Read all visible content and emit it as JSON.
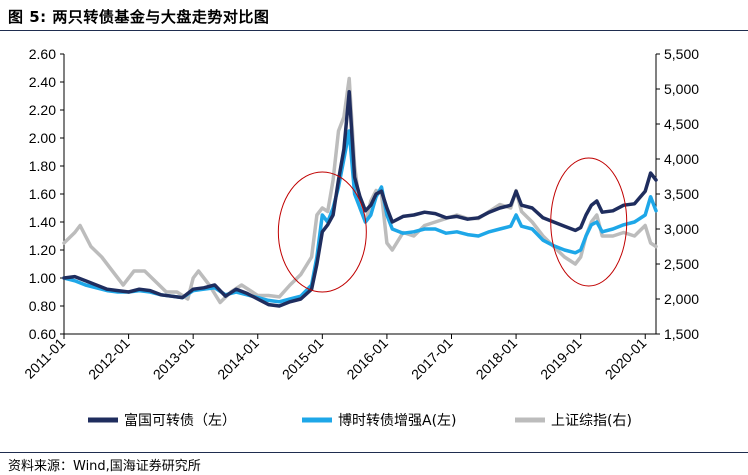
{
  "figure": {
    "title": "图 5:  两只转债基金与大盘走势对比图",
    "source": "资料来源：Wind,国海证券研究所"
  },
  "chart_data": {
    "type": "line",
    "title": "两只转债基金与大盘走势对比图",
    "x_ticks": [
      "2011-01",
      "2012-01",
      "2013-01",
      "2014-01",
      "2015-01",
      "2016-01",
      "2017-01",
      "2018-01",
      "2019-01",
      "2020-01"
    ],
    "x_range": [
      "2011-01",
      "2020-03"
    ],
    "ylim_left": [
      0.6,
      2.6
    ],
    "yticks_left": [
      "0.60",
      "0.80",
      "1.00",
      "1.20",
      "1.40",
      "1.60",
      "1.80",
      "2.00",
      "2.20",
      "2.40",
      "2.60"
    ],
    "ylim_right": [
      1500,
      5500
    ],
    "yticks_right": [
      "1,500",
      "2,000",
      "2,500",
      "3,000",
      "3,500",
      "4,000",
      "4,500",
      "5,000",
      "5,500"
    ],
    "grid": false,
    "legend_position": "bottom",
    "annotations": [
      {
        "type": "ellipse",
        "color": "#c00000",
        "around": "2014-10 to 2015-04"
      },
      {
        "type": "ellipse",
        "color": "#c00000",
        "around": "2018-12 to 2019-05"
      }
    ],
    "series": [
      {
        "name": "富国可转债（左）",
        "axis": "left",
        "color": "#1f2d5e",
        "points": [
          [
            "2011-01",
            1.0
          ],
          [
            "2011-03",
            1.01
          ],
          [
            "2011-05",
            0.98
          ],
          [
            "2011-07",
            0.95
          ],
          [
            "2011-09",
            0.92
          ],
          [
            "2011-11",
            0.91
          ],
          [
            "2012-01",
            0.9
          ],
          [
            "2012-03",
            0.92
          ],
          [
            "2012-05",
            0.91
          ],
          [
            "2012-07",
            0.88
          ],
          [
            "2012-09",
            0.87
          ],
          [
            "2012-11",
            0.86
          ],
          [
            "2013-01",
            0.92
          ],
          [
            "2013-03",
            0.93
          ],
          [
            "2013-05",
            0.95
          ],
          [
            "2013-07",
            0.87
          ],
          [
            "2013-09",
            0.92
          ],
          [
            "2013-11",
            0.89
          ],
          [
            "2014-01",
            0.85
          ],
          [
            "2014-03",
            0.81
          ],
          [
            "2014-05",
            0.8
          ],
          [
            "2014-07",
            0.83
          ],
          [
            "2014-09",
            0.85
          ],
          [
            "2014-11",
            0.92
          ],
          [
            "2014-12",
            1.1
          ],
          [
            "2015-01",
            1.33
          ],
          [
            "2015-02",
            1.38
          ],
          [
            "2015-03",
            1.45
          ],
          [
            "2015-04",
            1.7
          ],
          [
            "2015-05",
            1.92
          ],
          [
            "2015-06",
            2.33
          ],
          [
            "2015-07",
            1.72
          ],
          [
            "2015-08",
            1.58
          ],
          [
            "2015-09",
            1.48
          ],
          [
            "2015-10",
            1.52
          ],
          [
            "2015-11",
            1.6
          ],
          [
            "2015-12",
            1.62
          ],
          [
            "2016-01",
            1.5
          ],
          [
            "2016-02",
            1.4
          ],
          [
            "2016-04",
            1.44
          ],
          [
            "2016-06",
            1.45
          ],
          [
            "2016-08",
            1.47
          ],
          [
            "2016-10",
            1.46
          ],
          [
            "2016-12",
            1.43
          ],
          [
            "2017-02",
            1.44
          ],
          [
            "2017-04",
            1.42
          ],
          [
            "2017-06",
            1.43
          ],
          [
            "2017-08",
            1.47
          ],
          [
            "2017-10",
            1.5
          ],
          [
            "2017-12",
            1.52
          ],
          [
            "2018-01",
            1.62
          ],
          [
            "2018-02",
            1.52
          ],
          [
            "2018-04",
            1.5
          ],
          [
            "2018-06",
            1.43
          ],
          [
            "2018-08",
            1.4
          ],
          [
            "2018-10",
            1.37
          ],
          [
            "2018-12",
            1.34
          ],
          [
            "2019-01",
            1.36
          ],
          [
            "2019-02",
            1.45
          ],
          [
            "2019-03",
            1.52
          ],
          [
            "2019-04",
            1.55
          ],
          [
            "2019-05",
            1.47
          ],
          [
            "2019-07",
            1.48
          ],
          [
            "2019-09",
            1.52
          ],
          [
            "2019-11",
            1.53
          ],
          [
            "2020-01",
            1.62
          ],
          [
            "2020-02",
            1.75
          ],
          [
            "2020-03",
            1.7
          ]
        ]
      },
      {
        "name": "博时转债增强A(左)",
        "axis": "left",
        "color": "#1ea7e8",
        "points": [
          [
            "2011-01",
            1.0
          ],
          [
            "2011-03",
            0.98
          ],
          [
            "2011-05",
            0.95
          ],
          [
            "2011-07",
            0.93
          ],
          [
            "2011-09",
            0.91
          ],
          [
            "2011-11",
            0.9
          ],
          [
            "2012-01",
            0.9
          ],
          [
            "2012-03",
            0.91
          ],
          [
            "2012-05",
            0.9
          ],
          [
            "2012-07",
            0.88
          ],
          [
            "2012-09",
            0.87
          ],
          [
            "2012-11",
            0.86
          ],
          [
            "2013-01",
            0.91
          ],
          [
            "2013-03",
            0.92
          ],
          [
            "2013-05",
            0.93
          ],
          [
            "2013-07",
            0.88
          ],
          [
            "2013-09",
            0.9
          ],
          [
            "2013-11",
            0.88
          ],
          [
            "2014-01",
            0.86
          ],
          [
            "2014-03",
            0.84
          ],
          [
            "2014-05",
            0.83
          ],
          [
            "2014-07",
            0.85
          ],
          [
            "2014-09",
            0.87
          ],
          [
            "2014-11",
            0.95
          ],
          [
            "2014-12",
            1.15
          ],
          [
            "2015-01",
            1.45
          ],
          [
            "2015-02",
            1.4
          ],
          [
            "2015-03",
            1.5
          ],
          [
            "2015-04",
            1.65
          ],
          [
            "2015-05",
            1.85
          ],
          [
            "2015-06",
            2.05
          ],
          [
            "2015-07",
            1.6
          ],
          [
            "2015-08",
            1.5
          ],
          [
            "2015-09",
            1.4
          ],
          [
            "2015-10",
            1.45
          ],
          [
            "2015-11",
            1.58
          ],
          [
            "2015-12",
            1.65
          ],
          [
            "2016-01",
            1.45
          ],
          [
            "2016-02",
            1.35
          ],
          [
            "2016-04",
            1.32
          ],
          [
            "2016-06",
            1.33
          ],
          [
            "2016-08",
            1.35
          ],
          [
            "2016-10",
            1.35
          ],
          [
            "2016-12",
            1.32
          ],
          [
            "2017-02",
            1.33
          ],
          [
            "2017-04",
            1.31
          ],
          [
            "2017-06",
            1.3
          ],
          [
            "2017-08",
            1.33
          ],
          [
            "2017-10",
            1.35
          ],
          [
            "2017-12",
            1.37
          ],
          [
            "2018-01",
            1.45
          ],
          [
            "2018-02",
            1.37
          ],
          [
            "2018-04",
            1.35
          ],
          [
            "2018-06",
            1.27
          ],
          [
            "2018-08",
            1.23
          ],
          [
            "2018-10",
            1.2
          ],
          [
            "2018-12",
            1.18
          ],
          [
            "2019-01",
            1.2
          ],
          [
            "2019-02",
            1.3
          ],
          [
            "2019-03",
            1.38
          ],
          [
            "2019-04",
            1.4
          ],
          [
            "2019-05",
            1.33
          ],
          [
            "2019-07",
            1.35
          ],
          [
            "2019-09",
            1.38
          ],
          [
            "2019-11",
            1.4
          ],
          [
            "2020-01",
            1.45
          ],
          [
            "2020-02",
            1.58
          ],
          [
            "2020-03",
            1.48
          ]
        ]
      },
      {
        "name": "上证综指(右)",
        "axis": "right",
        "color": "#bcbcbc",
        "points": [
          [
            "2011-01",
            2800
          ],
          [
            "2011-03",
            2950
          ],
          [
            "2011-04",
            3050
          ],
          [
            "2011-06",
            2750
          ],
          [
            "2011-08",
            2600
          ],
          [
            "2011-10",
            2400
          ],
          [
            "2011-12",
            2200
          ],
          [
            "2012-02",
            2400
          ],
          [
            "2012-04",
            2400
          ],
          [
            "2012-06",
            2250
          ],
          [
            "2012-08",
            2100
          ],
          [
            "2012-10",
            2100
          ],
          [
            "2012-12",
            2000
          ],
          [
            "2013-01",
            2300
          ],
          [
            "2013-02",
            2400
          ],
          [
            "2013-04",
            2200
          ],
          [
            "2013-06",
            1950
          ],
          [
            "2013-08",
            2100
          ],
          [
            "2013-10",
            2200
          ],
          [
            "2013-12",
            2100
          ],
          [
            "2014-01",
            2050
          ],
          [
            "2014-03",
            2050
          ],
          [
            "2014-05",
            2030
          ],
          [
            "2014-07",
            2200
          ],
          [
            "2014-09",
            2350
          ],
          [
            "2014-11",
            2600
          ],
          [
            "2014-12",
            3200
          ],
          [
            "2015-01",
            3300
          ],
          [
            "2015-02",
            3250
          ],
          [
            "2015-03",
            3700
          ],
          [
            "2015-04",
            4400
          ],
          [
            "2015-05",
            4600
          ],
          [
            "2015-06",
            5150
          ],
          [
            "2015-07",
            3900
          ],
          [
            "2015-08",
            3300
          ],
          [
            "2015-09",
            3100
          ],
          [
            "2015-10",
            3400
          ],
          [
            "2015-11",
            3550
          ],
          [
            "2015-12",
            3500
          ],
          [
            "2016-01",
            2800
          ],
          [
            "2016-02",
            2700
          ],
          [
            "2016-04",
            2950
          ],
          [
            "2016-06",
            2900
          ],
          [
            "2016-08",
            3050
          ],
          [
            "2016-10",
            3100
          ],
          [
            "2016-12",
            3150
          ],
          [
            "2017-02",
            3200
          ],
          [
            "2017-04",
            3150
          ],
          [
            "2017-06",
            3150
          ],
          [
            "2017-08",
            3250
          ],
          [
            "2017-10",
            3350
          ],
          [
            "2017-12",
            3300
          ],
          [
            "2018-01",
            3550
          ],
          [
            "2018-02",
            3250
          ],
          [
            "2018-04",
            3100
          ],
          [
            "2018-06",
            2900
          ],
          [
            "2018-08",
            2750
          ],
          [
            "2018-10",
            2600
          ],
          [
            "2018-12",
            2500
          ],
          [
            "2019-01",
            2600
          ],
          [
            "2019-02",
            2900
          ],
          [
            "2019-03",
            3100
          ],
          [
            "2019-04",
            3200
          ],
          [
            "2019-05",
            2900
          ],
          [
            "2019-07",
            2900
          ],
          [
            "2019-09",
            2950
          ],
          [
            "2019-11",
            2900
          ],
          [
            "2020-01",
            3050
          ],
          [
            "2020-02",
            2800
          ],
          [
            "2020-03",
            2750
          ]
        ]
      }
    ]
  }
}
